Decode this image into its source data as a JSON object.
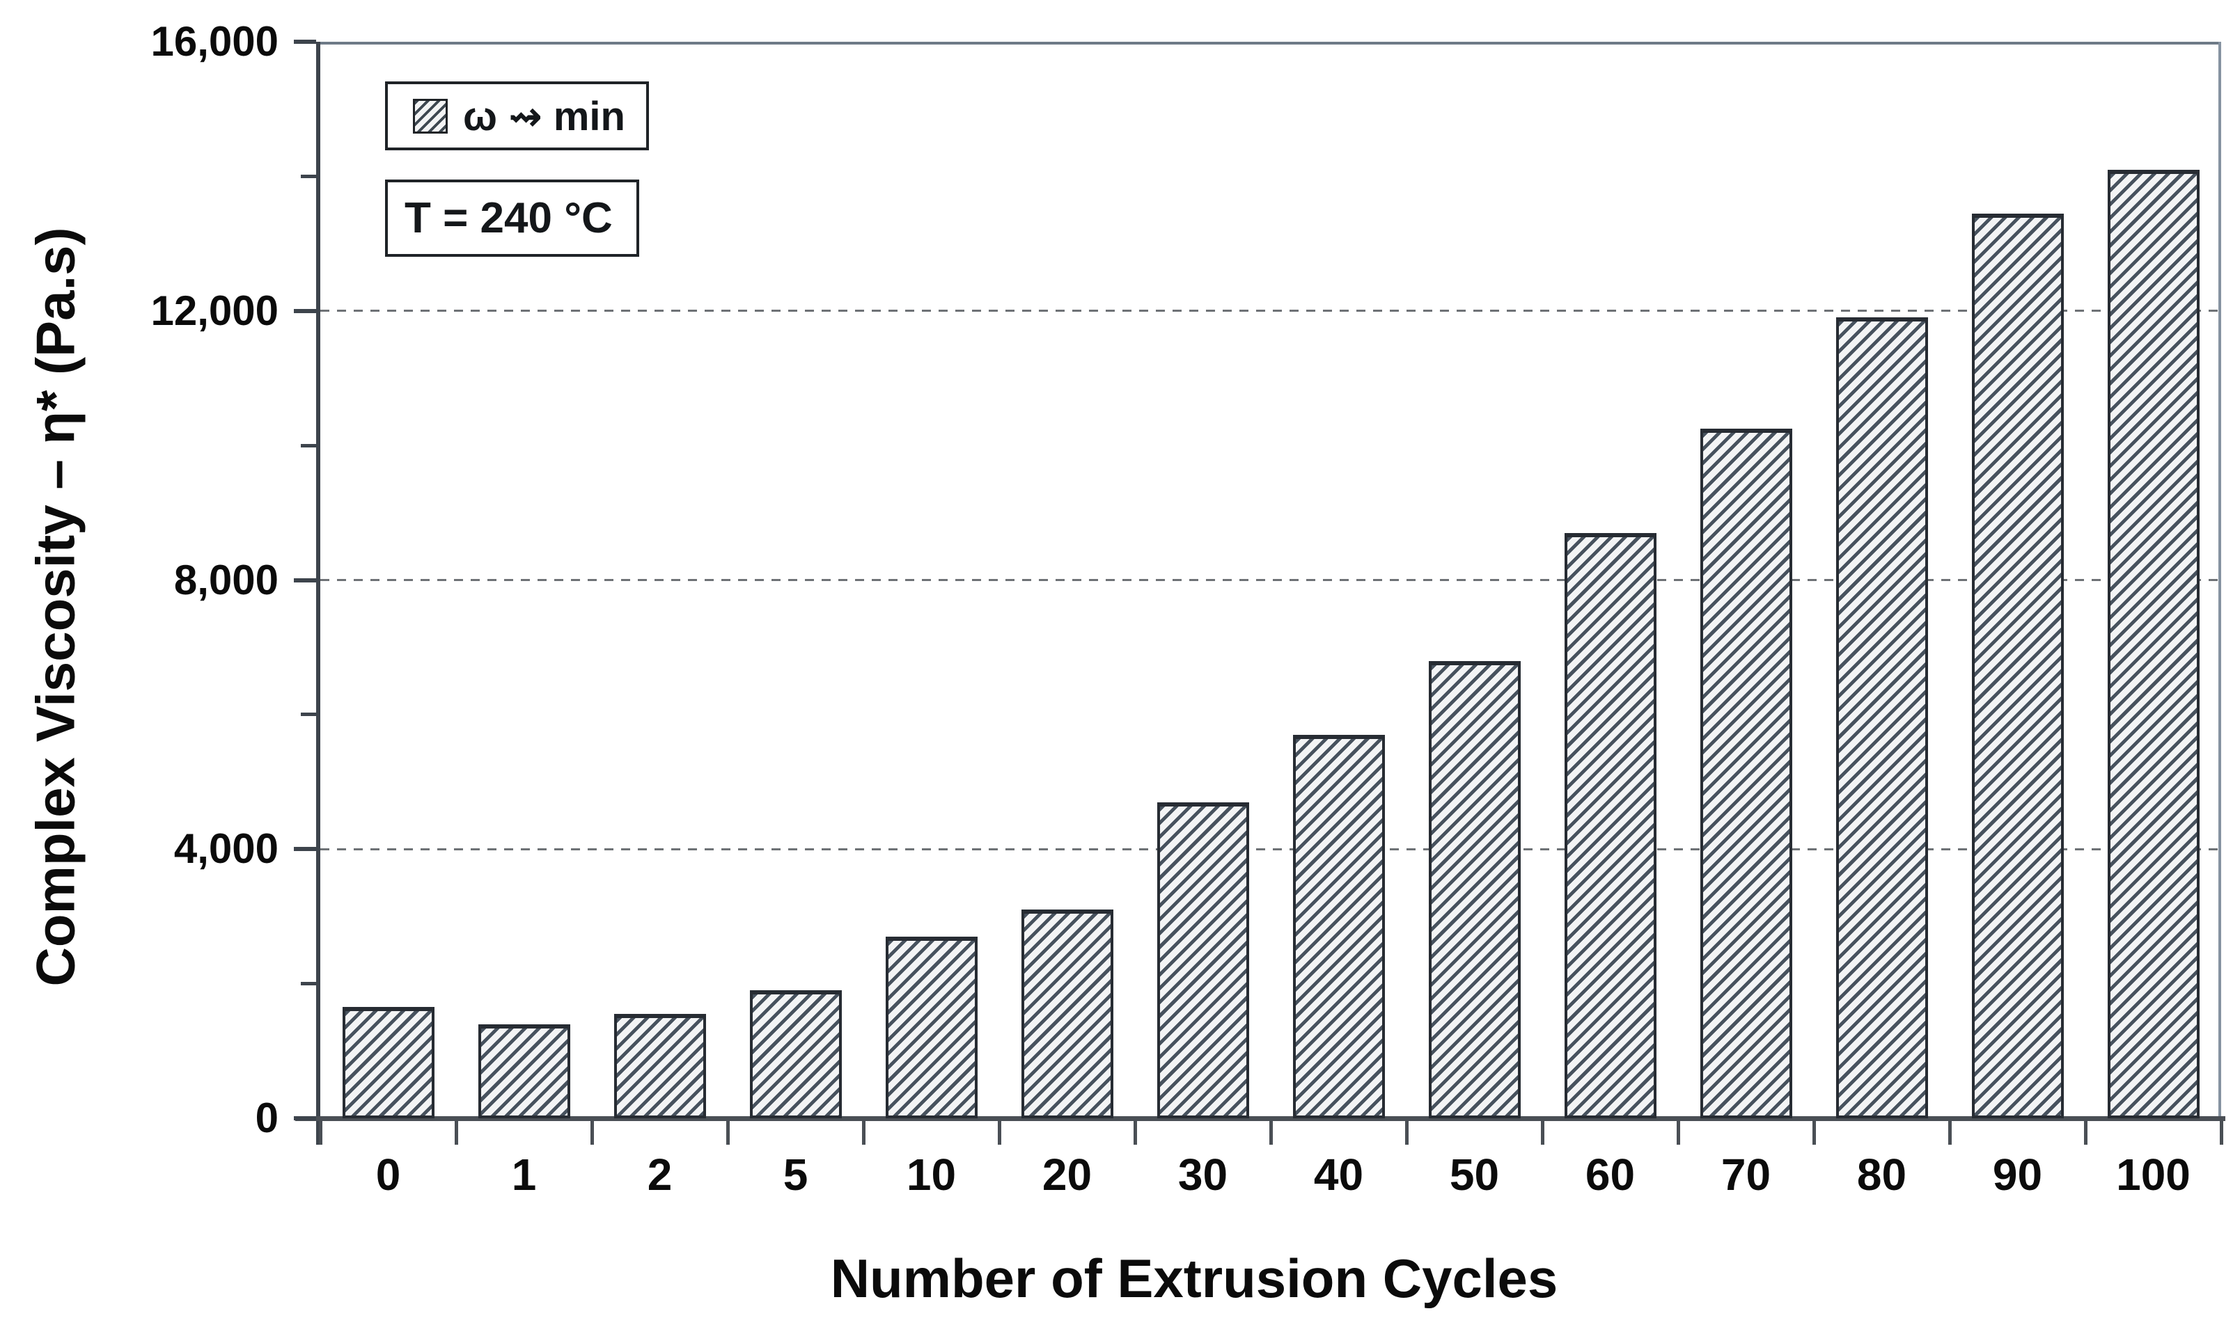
{
  "chart_data": {
    "type": "bar",
    "title": "",
    "categories": [
      "0",
      "1",
      "2",
      "5",
      "10",
      "20",
      "30",
      "40",
      "50",
      "60",
      "70",
      "80",
      "90",
      "100"
    ],
    "values": [
      1650,
      1400,
      1550,
      1900,
      2700,
      3100,
      4700,
      5700,
      6800,
      8700,
      10250,
      11900,
      13450,
      14100
    ],
    "xlabel": "Number of Extrusion Cycles",
    "ylabel": "Complex Viscosity – η* (Pa.s)",
    "ylim": [
      0,
      16000
    ],
    "yticks": [
      {
        "value": 0,
        "label": "0"
      },
      {
        "value": 4000,
        "label": "4,000"
      },
      {
        "value": 8000,
        "label": "8,000"
      },
      {
        "value": 12000,
        "label": "12,000"
      },
      {
        "value": 16000,
        "label": "16,000"
      }
    ],
    "minor_yticks": [
      2000,
      6000,
      10000,
      14000
    ],
    "gridline_values": [
      4000,
      8000,
      12000
    ],
    "grid_style": "dashed-horizontal",
    "legend": {
      "swatch_icon": "diagonal-hatch-swatch-icon",
      "label": "ω ⇝ min",
      "position": "top-left"
    },
    "annotation": {
      "label": "T = 240 °C",
      "position": "top-left"
    },
    "bar_style": "forward-diagonal-hatch",
    "colors": {
      "background": "#ffffff",
      "bar_hatch_line": "#47525e",
      "bar_fill": "#f3f4f5",
      "bar_border": "#272c33",
      "axis": "#3d444c",
      "gridline": "#55595e",
      "text": "#0b0b0b"
    }
  }
}
